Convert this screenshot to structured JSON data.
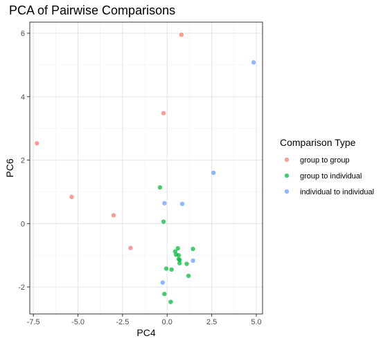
{
  "chart_data": {
    "type": "scatter",
    "title": "PCA of Pairwise Comparisons",
    "xlabel": "PC4",
    "ylabel": "PC6",
    "xlim": [
      -7.7,
      5.35
    ],
    "ylim": [
      -2.85,
      6.35
    ],
    "xticks": [
      -7.5,
      -5.0,
      -2.5,
      0.0,
      2.5,
      5.0
    ],
    "xtick_labels": [
      "-7.5",
      "-5.0",
      "-2.5",
      "0.0",
      "2.5",
      "5.0"
    ],
    "yticks": [
      -2,
      0,
      2,
      4,
      6
    ],
    "ytick_labels": [
      "-2",
      "0",
      "2",
      "4",
      "6"
    ],
    "grid": true,
    "legend": {
      "title": "Comparison Type",
      "position": "right"
    },
    "series": [
      {
        "name": "group to group",
        "color": "#F8766D",
        "points": [
          {
            "x": 0.8,
            "y": 5.95
          },
          {
            "x": -0.2,
            "y": 3.48
          },
          {
            "x": -7.3,
            "y": 2.53
          },
          {
            "x": -5.35,
            "y": 0.84
          },
          {
            "x": -3.0,
            "y": 0.26
          },
          {
            "x": -2.05,
            "y": -0.77
          }
        ]
      },
      {
        "name": "group to individual",
        "color": "#00BA38",
        "points": [
          {
            "x": -0.4,
            "y": 1.14
          },
          {
            "x": -0.2,
            "y": 0.06
          },
          {
            "x": 0.6,
            "y": -0.78
          },
          {
            "x": 0.45,
            "y": -0.88
          },
          {
            "x": 1.45,
            "y": -0.8
          },
          {
            "x": 0.5,
            "y": -0.98
          },
          {
            "x": 0.65,
            "y": -1.0
          },
          {
            "x": 0.65,
            "y": -1.12
          },
          {
            "x": 0.7,
            "y": -1.15
          },
          {
            "x": 0.7,
            "y": -1.25
          },
          {
            "x": 1.1,
            "y": -1.27
          },
          {
            "x": -0.05,
            "y": -1.42
          },
          {
            "x": 0.25,
            "y": -1.45
          },
          {
            "x": 1.2,
            "y": -1.65
          },
          {
            "x": -0.15,
            "y": -2.22
          },
          {
            "x": 0.2,
            "y": -2.47
          }
        ]
      },
      {
        "name": "individual to individual",
        "color": "#619CFF",
        "points": [
          {
            "x": 4.85,
            "y": 5.08
          },
          {
            "x": 2.6,
            "y": 1.6
          },
          {
            "x": -0.15,
            "y": 0.64
          },
          {
            "x": 0.85,
            "y": 0.62
          },
          {
            "x": 1.45,
            "y": -1.17
          },
          {
            "x": -0.25,
            "y": -1.86
          }
        ]
      }
    ]
  }
}
